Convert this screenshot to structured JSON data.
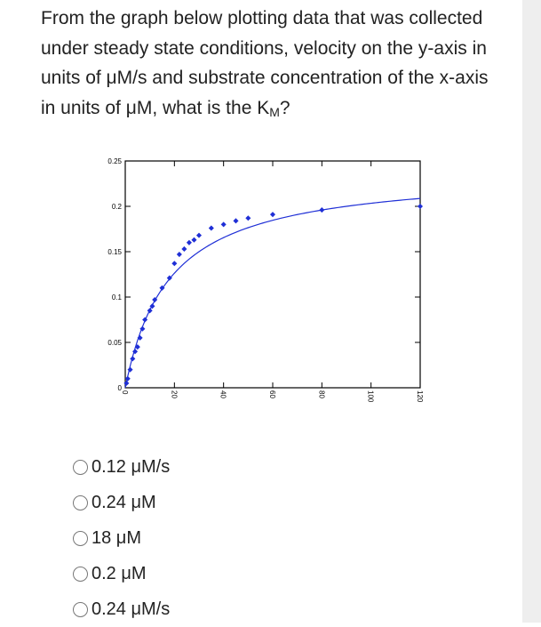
{
  "question": {
    "text_pre": "From the graph below plotting data that was collected under steady state conditions, velocity on the y-axis in units of μM/s and substrate concentration of the x-axis in units of μM, what is the K",
    "text_sub": "M",
    "text_post": "?"
  },
  "choices": [
    {
      "label": "0.12 μM/s",
      "selected": false
    },
    {
      "label": "0.24 μM",
      "selected": false
    },
    {
      "label": "18 μM",
      "selected": false
    },
    {
      "label": "0.2 μM",
      "selected": false
    },
    {
      "label": "0.24 μM/s",
      "selected": false
    }
  ],
  "chart_data": {
    "type": "scatter",
    "title": "",
    "xlabel": "",
    "ylabel": "",
    "xlim": [
      0,
      120
    ],
    "ylim": [
      0,
      0.25
    ],
    "x_ticks": [
      0,
      20,
      40,
      60,
      80,
      100,
      120
    ],
    "x_tick_labels": [
      "0",
      "20",
      "40",
      "60",
      "80",
      "100",
      "120"
    ],
    "y_ticks": [
      0,
      0.05,
      0.1,
      0.15,
      0.2,
      0.25
    ],
    "y_tick_labels": [
      "0",
      "0.05",
      "0.1",
      "0.15",
      "0.2",
      "0.25"
    ],
    "grid": false,
    "series": [
      {
        "kind": "points",
        "x": [
          0.5,
          1,
          2,
          3,
          4,
          5,
          6,
          7,
          8,
          10,
          11,
          12,
          15,
          18,
          20,
          22,
          24,
          26,
          28,
          30,
          35,
          40,
          45,
          50,
          60,
          80,
          120
        ],
        "y": [
          0.005,
          0.01,
          0.02,
          0.032,
          0.04,
          0.045,
          0.055,
          0.065,
          0.075,
          0.085,
          0.09,
          0.097,
          0.11,
          0.121,
          0.137,
          0.147,
          0.153,
          0.16,
          0.163,
          0.168,
          0.176,
          0.18,
          0.184,
          0.187,
          0.191,
          0.196,
          0.2
        ],
        "color": "#1f2fd6"
      },
      {
        "kind": "fit",
        "vmax": 0.24,
        "km": 18,
        "color": "#1f2fd6"
      }
    ]
  }
}
